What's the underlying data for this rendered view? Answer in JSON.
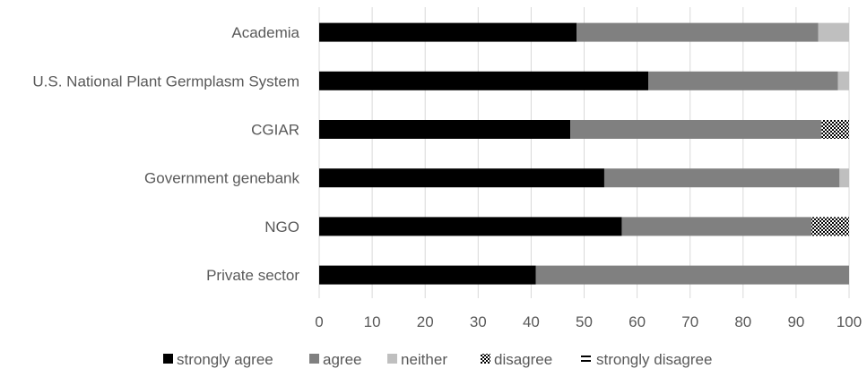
{
  "chart_data": {
    "type": "bar",
    "orientation": "horizontal",
    "stacked": true,
    "title": "",
    "xlabel": "",
    "ylabel": "",
    "xlim": [
      0,
      100
    ],
    "xticks": [
      0,
      10,
      20,
      30,
      40,
      50,
      60,
      70,
      80,
      90,
      100
    ],
    "grid": "vertical",
    "legend_position": "bottom",
    "categories": [
      "Academia",
      "U.S. National Plant Germplasm System",
      "CGIAR",
      "Government genebank",
      "NGO",
      "Private sector"
    ],
    "series": [
      {
        "name": "strongly agree",
        "color": "#000000",
        "pattern": "solid",
        "values": [
          48.6,
          62.1,
          47.4,
          53.8,
          57.1,
          40.9
        ]
      },
      {
        "name": "agree",
        "color": "#808080",
        "pattern": "solid",
        "values": [
          45.6,
          35.8,
          47.4,
          44.4,
          35.8,
          59.1
        ]
      },
      {
        "name": "neither",
        "color": "#bfbfbf",
        "pattern": "solid",
        "values": [
          5.8,
          2.1,
          0,
          1.8,
          0,
          0
        ]
      },
      {
        "name": "disagree",
        "color": "#000000",
        "pattern": "checkerboard",
        "values": [
          0,
          0,
          5.2,
          0,
          7.1,
          0
        ]
      },
      {
        "name": "strongly disagree",
        "color": "#000000",
        "pattern": "horizontal-stripes",
        "values": [
          0,
          0,
          0,
          0,
          0,
          0
        ]
      }
    ]
  }
}
